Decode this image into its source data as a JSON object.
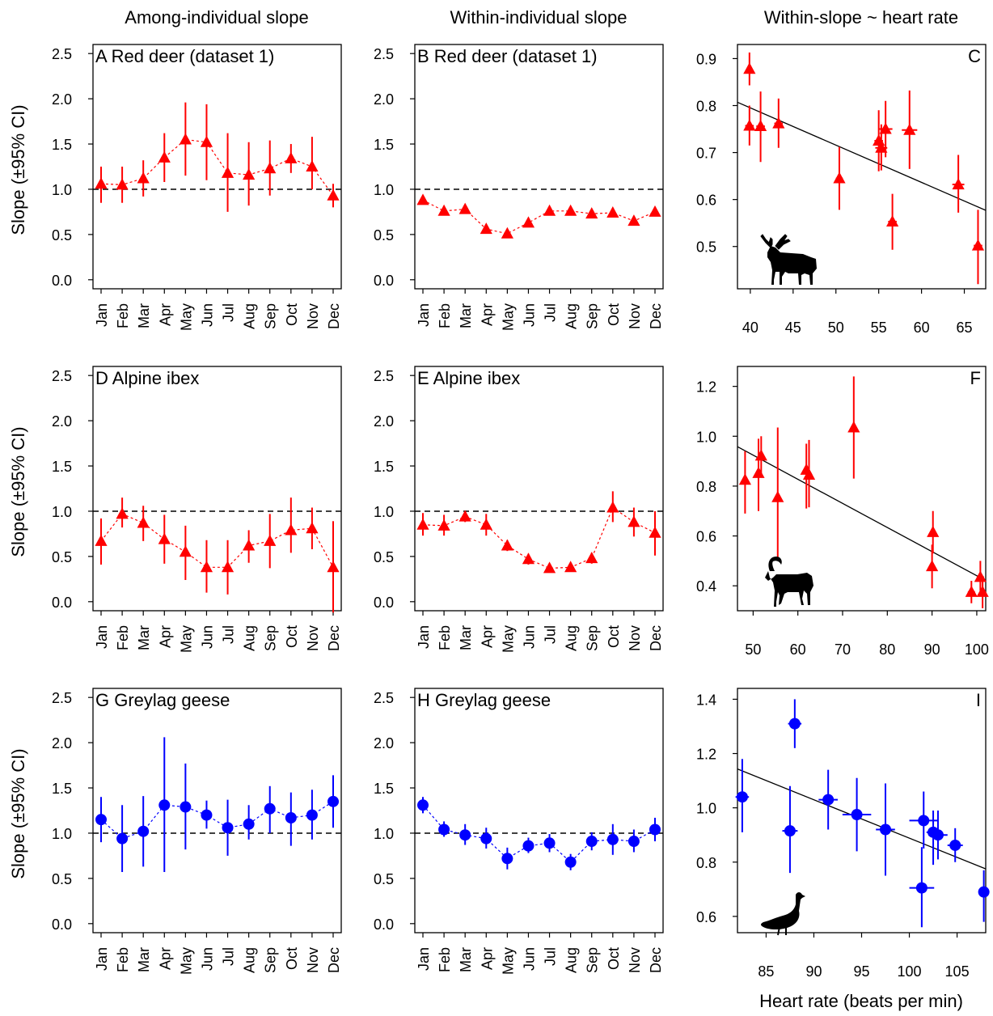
{
  "colors": {
    "red": "#ff0000",
    "blue": "#0000ff",
    "black": "#000000"
  },
  "column_titles": [
    "Among-individual slope",
    "Within-individual slope",
    "Within-slope ~ heart rate"
  ],
  "y_label": "Slope (±95% CI)",
  "x_label": "Heart rate (beats per min)",
  "months": [
    "Jan",
    "Feb",
    "Mar",
    "Apr",
    "May",
    "Jun",
    "Jul",
    "Aug",
    "Sep",
    "Oct",
    "Nov",
    "Dec"
  ],
  "chart_data": [
    {
      "id": "A",
      "type": "line",
      "title": "A Red deer (dataset 1)",
      "color": "red",
      "marker": "triangle",
      "ylim": [
        -0.1,
        2.6
      ],
      "yticks": [
        0.0,
        0.5,
        1.0,
        1.5,
        2.0,
        2.5
      ],
      "ref_line": 1.0,
      "values": [
        1.06,
        1.05,
        1.12,
        1.35,
        1.55,
        1.52,
        1.18,
        1.16,
        1.23,
        1.34,
        1.25,
        0.93
      ],
      "lower": [
        0.85,
        0.85,
        0.92,
        1.08,
        1.15,
        1.1,
        0.75,
        0.82,
        0.93,
        1.18,
        1.0,
        0.8
      ],
      "upper": [
        1.25,
        1.25,
        1.32,
        1.62,
        1.96,
        1.94,
        1.62,
        1.52,
        1.54,
        1.5,
        1.58,
        1.06
      ]
    },
    {
      "id": "B",
      "type": "line",
      "title": "B Red deer (dataset 1)",
      "color": "red",
      "marker": "triangle",
      "ylim": [
        -0.1,
        2.6
      ],
      "yticks": [
        0.0,
        0.5,
        1.0,
        1.5,
        2.0,
        2.5
      ],
      "ref_line": 1.0,
      "values": [
        0.88,
        0.76,
        0.78,
        0.56,
        0.51,
        0.63,
        0.76,
        0.76,
        0.73,
        0.74,
        0.65,
        0.75
      ],
      "lower": [
        0.84,
        0.71,
        0.73,
        0.51,
        0.46,
        0.58,
        0.71,
        0.71,
        0.69,
        0.69,
        0.6,
        0.7
      ],
      "upper": [
        0.92,
        0.81,
        0.83,
        0.61,
        0.56,
        0.68,
        0.81,
        0.81,
        0.77,
        0.79,
        0.7,
        0.8
      ]
    },
    {
      "id": "C",
      "type": "scatter",
      "title": "C",
      "color": "red",
      "marker": "triangle",
      "xlim": [
        38.5,
        67.5
      ],
      "xticks": [
        40,
        45,
        50,
        55,
        60,
        65
      ],
      "ylim": [
        0.41,
        0.93
      ],
      "yticks": [
        0.5,
        0.6,
        0.7,
        0.8,
        0.9
      ],
      "fit": {
        "x": [
          38.5,
          67.5
        ],
        "y": [
          0.807,
          0.577
        ]
      },
      "points": [
        {
          "x": 39.9,
          "y": 0.878,
          "ylo": 0.843,
          "yhi": 0.913,
          "xlo": 39.6,
          "xhi": 40.2
        },
        {
          "x": 39.9,
          "y": 0.757,
          "ylo": 0.715,
          "yhi": 0.8,
          "xlo": 39.4,
          "xhi": 40.4
        },
        {
          "x": 41.2,
          "y": 0.756,
          "ylo": 0.68,
          "yhi": 0.83,
          "xlo": 40.7,
          "xhi": 41.7
        },
        {
          "x": 43.3,
          "y": 0.762,
          "ylo": 0.71,
          "yhi": 0.815,
          "xlo": 42.8,
          "xhi": 43.8
        },
        {
          "x": 50.4,
          "y": 0.645,
          "ylo": 0.578,
          "yhi": 0.712,
          "xlo": 50.0,
          "xhi": 50.8
        },
        {
          "x": 55.0,
          "y": 0.725,
          "ylo": 0.66,
          "yhi": 0.79,
          "xlo": 54.5,
          "xhi": 55.5
        },
        {
          "x": 55.3,
          "y": 0.71,
          "ylo": 0.662,
          "yhi": 0.76,
          "xlo": 54.6,
          "xhi": 56.0
        },
        {
          "x": 55.8,
          "y": 0.75,
          "ylo": 0.69,
          "yhi": 0.81,
          "xlo": 55.0,
          "xhi": 56.6
        },
        {
          "x": 56.6,
          "y": 0.553,
          "ylo": 0.493,
          "yhi": 0.612,
          "xlo": 56.1,
          "xhi": 57.1
        },
        {
          "x": 58.6,
          "y": 0.748,
          "ylo": 0.665,
          "yhi": 0.832,
          "xlo": 57.7,
          "xhi": 59.5
        },
        {
          "x": 64.3,
          "y": 0.632,
          "ylo": 0.572,
          "yhi": 0.695,
          "xlo": 63.6,
          "xhi": 65.0
        },
        {
          "x": 66.6,
          "y": 0.502,
          "ylo": 0.42,
          "yhi": 0.578,
          "xlo": 66.1,
          "xhi": 67.1
        }
      ]
    },
    {
      "id": "D",
      "type": "line",
      "title": "D Alpine ibex",
      "color": "red",
      "marker": "triangle",
      "ylim": [
        -0.1,
        2.6
      ],
      "yticks": [
        0.0,
        0.5,
        1.0,
        1.5,
        2.0,
        2.5
      ],
      "ref_line": 1.0,
      "values": [
        0.67,
        0.97,
        0.87,
        0.69,
        0.55,
        0.38,
        0.38,
        0.62,
        0.67,
        0.79,
        0.81,
        0.38
      ],
      "lower": [
        0.41,
        0.82,
        0.67,
        0.42,
        0.24,
        0.1,
        0.08,
        0.43,
        0.37,
        0.54,
        0.58,
        -0.12
      ],
      "upper": [
        0.92,
        1.15,
        1.06,
        0.96,
        0.84,
        0.68,
        0.68,
        0.79,
        0.97,
        1.15,
        1.04,
        0.89
      ]
    },
    {
      "id": "E",
      "type": "line",
      "title": "E Alpine ibex",
      "color": "red",
      "marker": "triangle",
      "ylim": [
        -0.1,
        2.6
      ],
      "yticks": [
        0.0,
        0.5,
        1.0,
        1.5,
        2.0,
        2.5
      ],
      "ref_line": 1.0,
      "values": [
        0.85,
        0.84,
        0.94,
        0.85,
        0.62,
        0.47,
        0.37,
        0.38,
        0.48,
        1.04,
        0.88,
        0.76
      ],
      "lower": [
        0.73,
        0.73,
        0.88,
        0.73,
        0.56,
        0.41,
        0.32,
        0.33,
        0.42,
        0.88,
        0.72,
        0.51
      ],
      "upper": [
        0.98,
        0.96,
        1.0,
        0.97,
        0.68,
        0.53,
        0.42,
        0.43,
        0.54,
        1.22,
        1.04,
        1.0
      ]
    },
    {
      "id": "F",
      "type": "scatter",
      "title": "F",
      "color": "red",
      "marker": "triangle",
      "xlim": [
        46.5,
        102
      ],
      "xticks": [
        50,
        60,
        70,
        80,
        90,
        100
      ],
      "ylim": [
        0.3,
        1.28
      ],
      "yticks": [
        0.4,
        0.6,
        0.8,
        1.0,
        1.2
      ],
      "fit": {
        "x": [
          46.5,
          102
        ],
        "y": [
          0.958,
          0.421
        ]
      },
      "points": [
        {
          "x": 48.2,
          "y": 0.825,
          "ylo": 0.69,
          "yhi": 0.94,
          "xlo": 47.6,
          "xhi": 48.8
        },
        {
          "x": 51.2,
          "y": 0.852,
          "ylo": 0.7,
          "yhi": 0.99,
          "xlo": 50.6,
          "xhi": 51.8
        },
        {
          "x": 51.8,
          "y": 0.922,
          "ylo": 0.84,
          "yhi": 1.0,
          "xlo": 51.2,
          "xhi": 52.4
        },
        {
          "x": 55.5,
          "y": 0.755,
          "ylo": 0.5,
          "yhi": 1.035,
          "xlo": 54.9,
          "xhi": 56.1
        },
        {
          "x": 61.9,
          "y": 0.865,
          "ylo": 0.71,
          "yhi": 0.97,
          "xlo": 61.3,
          "xhi": 62.5
        },
        {
          "x": 62.5,
          "y": 0.845,
          "ylo": 0.715,
          "yhi": 0.985,
          "xlo": 61.9,
          "xhi": 63.1
        },
        {
          "x": 72.5,
          "y": 1.035,
          "ylo": 0.83,
          "yhi": 1.24,
          "xlo": 71.9,
          "xhi": 73.1
        },
        {
          "x": 90.2,
          "y": 0.615,
          "ylo": 0.53,
          "yhi": 0.7,
          "xlo": 89.6,
          "xhi": 90.8
        },
        {
          "x": 90.0,
          "y": 0.478,
          "ylo": 0.39,
          "yhi": 0.565,
          "xlo": 89.4,
          "xhi": 90.6
        },
        {
          "x": 98.8,
          "y": 0.375,
          "ylo": 0.33,
          "yhi": 0.42,
          "xlo": 98.0,
          "xhi": 99.6
        },
        {
          "x": 100.8,
          "y": 0.435,
          "ylo": 0.38,
          "yhi": 0.5,
          "xlo": 100.0,
          "xhi": 101.6
        },
        {
          "x": 101.3,
          "y": 0.375,
          "ylo": 0.31,
          "yhi": 0.43,
          "xlo": 100.7,
          "xhi": 101.9
        }
      ]
    },
    {
      "id": "G",
      "type": "line",
      "title": "G Greylag geese",
      "color": "blue",
      "marker": "circle",
      "ylim": [
        -0.1,
        2.6
      ],
      "yticks": [
        0.0,
        0.5,
        1.0,
        1.5,
        2.0,
        2.5
      ],
      "ref_line": 1.0,
      "values": [
        1.15,
        0.94,
        1.02,
        1.31,
        1.29,
        1.2,
        1.06,
        1.1,
        1.27,
        1.17,
        1.2,
        1.35
      ],
      "lower": [
        0.9,
        0.57,
        0.63,
        0.57,
        0.82,
        1.05,
        0.75,
        0.93,
        1.0,
        0.86,
        0.93,
        1.06
      ],
      "upper": [
        1.4,
        1.31,
        1.41,
        2.06,
        1.77,
        1.36,
        1.37,
        1.31,
        1.52,
        1.45,
        1.48,
        1.64
      ]
    },
    {
      "id": "H",
      "type": "line",
      "title": "H Greylag geese",
      "color": "blue",
      "marker": "circle",
      "ylim": [
        -0.1,
        2.6
      ],
      "yticks": [
        0.0,
        0.5,
        1.0,
        1.5,
        2.0,
        2.5
      ],
      "ref_line": 1.0,
      "values": [
        1.31,
        1.04,
        0.98,
        0.94,
        0.72,
        0.86,
        0.89,
        0.68,
        0.91,
        0.93,
        0.91,
        1.04
      ],
      "lower": [
        1.22,
        0.96,
        0.87,
        0.83,
        0.6,
        0.78,
        0.79,
        0.59,
        0.81,
        0.76,
        0.79,
        0.91
      ],
      "upper": [
        1.4,
        1.13,
        1.1,
        1.06,
        0.84,
        0.95,
        0.99,
        0.77,
        1.01,
        1.1,
        1.04,
        1.17
      ]
    },
    {
      "id": "I",
      "type": "scatter",
      "title": "I",
      "color": "blue",
      "marker": "circle",
      "xlim": [
        82,
        108
      ],
      "xticks": [
        85,
        90,
        95,
        100,
        105
      ],
      "ylim": [
        0.54,
        1.44
      ],
      "yticks": [
        0.6,
        0.8,
        1.0,
        1.2,
        1.4
      ],
      "fit": {
        "x": [
          82,
          108
        ],
        "y": [
          1.143,
          0.775
        ]
      },
      "points": [
        {
          "x": 82.5,
          "y": 1.04,
          "ylo": 0.91,
          "yhi": 1.18,
          "xlo": 81.8,
          "xhi": 83.2
        },
        {
          "x": 88.0,
          "y": 1.31,
          "ylo": 1.22,
          "yhi": 1.4,
          "xlo": 87.3,
          "xhi": 88.7
        },
        {
          "x": 87.5,
          "y": 0.915,
          "ylo": 0.76,
          "yhi": 1.08,
          "xlo": 86.7,
          "xhi": 88.3
        },
        {
          "x": 91.5,
          "y": 1.03,
          "ylo": 0.92,
          "yhi": 1.14,
          "xlo": 90.5,
          "xhi": 92.5
        },
        {
          "x": 94.5,
          "y": 0.975,
          "ylo": 0.84,
          "yhi": 1.11,
          "xlo": 93.0,
          "xhi": 96.0
        },
        {
          "x": 97.5,
          "y": 0.92,
          "ylo": 0.75,
          "yhi": 1.09,
          "xlo": 96.5,
          "xhi": 98.5
        },
        {
          "x": 101.5,
          "y": 0.953,
          "ylo": 0.85,
          "yhi": 1.06,
          "xlo": 100.0,
          "xhi": 103.0
        },
        {
          "x": 101.3,
          "y": 0.705,
          "ylo": 0.56,
          "yhi": 0.855,
          "xlo": 100.0,
          "xhi": 102.6
        },
        {
          "x": 102.5,
          "y": 0.91,
          "ylo": 0.79,
          "yhi": 0.99,
          "xlo": 101.8,
          "xhi": 103.2
        },
        {
          "x": 103.0,
          "y": 0.9,
          "ylo": 0.81,
          "yhi": 0.99,
          "xlo": 102.0,
          "xhi": 104.0
        },
        {
          "x": 104.8,
          "y": 0.862,
          "ylo": 0.8,
          "yhi": 0.925,
          "xlo": 104.0,
          "xhi": 105.6
        },
        {
          "x": 107.8,
          "y": 0.69,
          "ylo": 0.58,
          "yhi": 0.77,
          "xlo": 107.4,
          "xhi": 108.2
        }
      ]
    }
  ]
}
